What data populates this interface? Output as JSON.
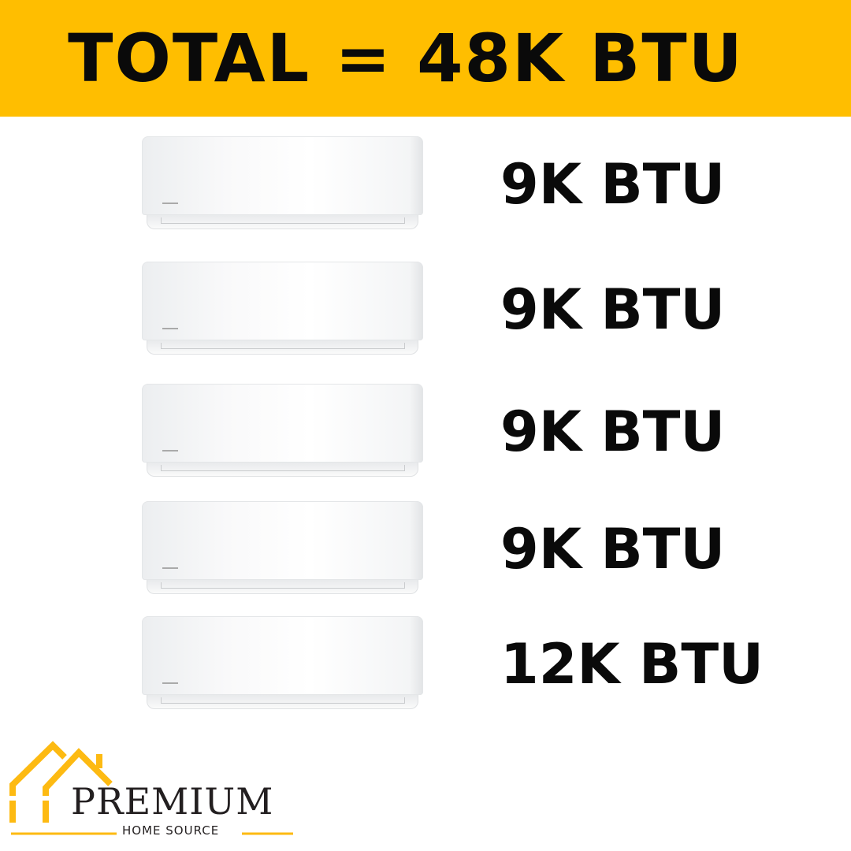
{
  "header": {
    "title": "TOTAL = 48K BTU",
    "background": "#FFBE00"
  },
  "units": [
    {
      "label": "9K BTU"
    },
    {
      "label": "9K BTU"
    },
    {
      "label": "9K BTU"
    },
    {
      "label": "9K BTU"
    },
    {
      "label": "12K BTU"
    }
  ],
  "logo": {
    "name": "PREMIUM",
    "tagline": "HOME SOURCE",
    "accent": "#FDBA12",
    "icon": "house-roof-icon"
  }
}
